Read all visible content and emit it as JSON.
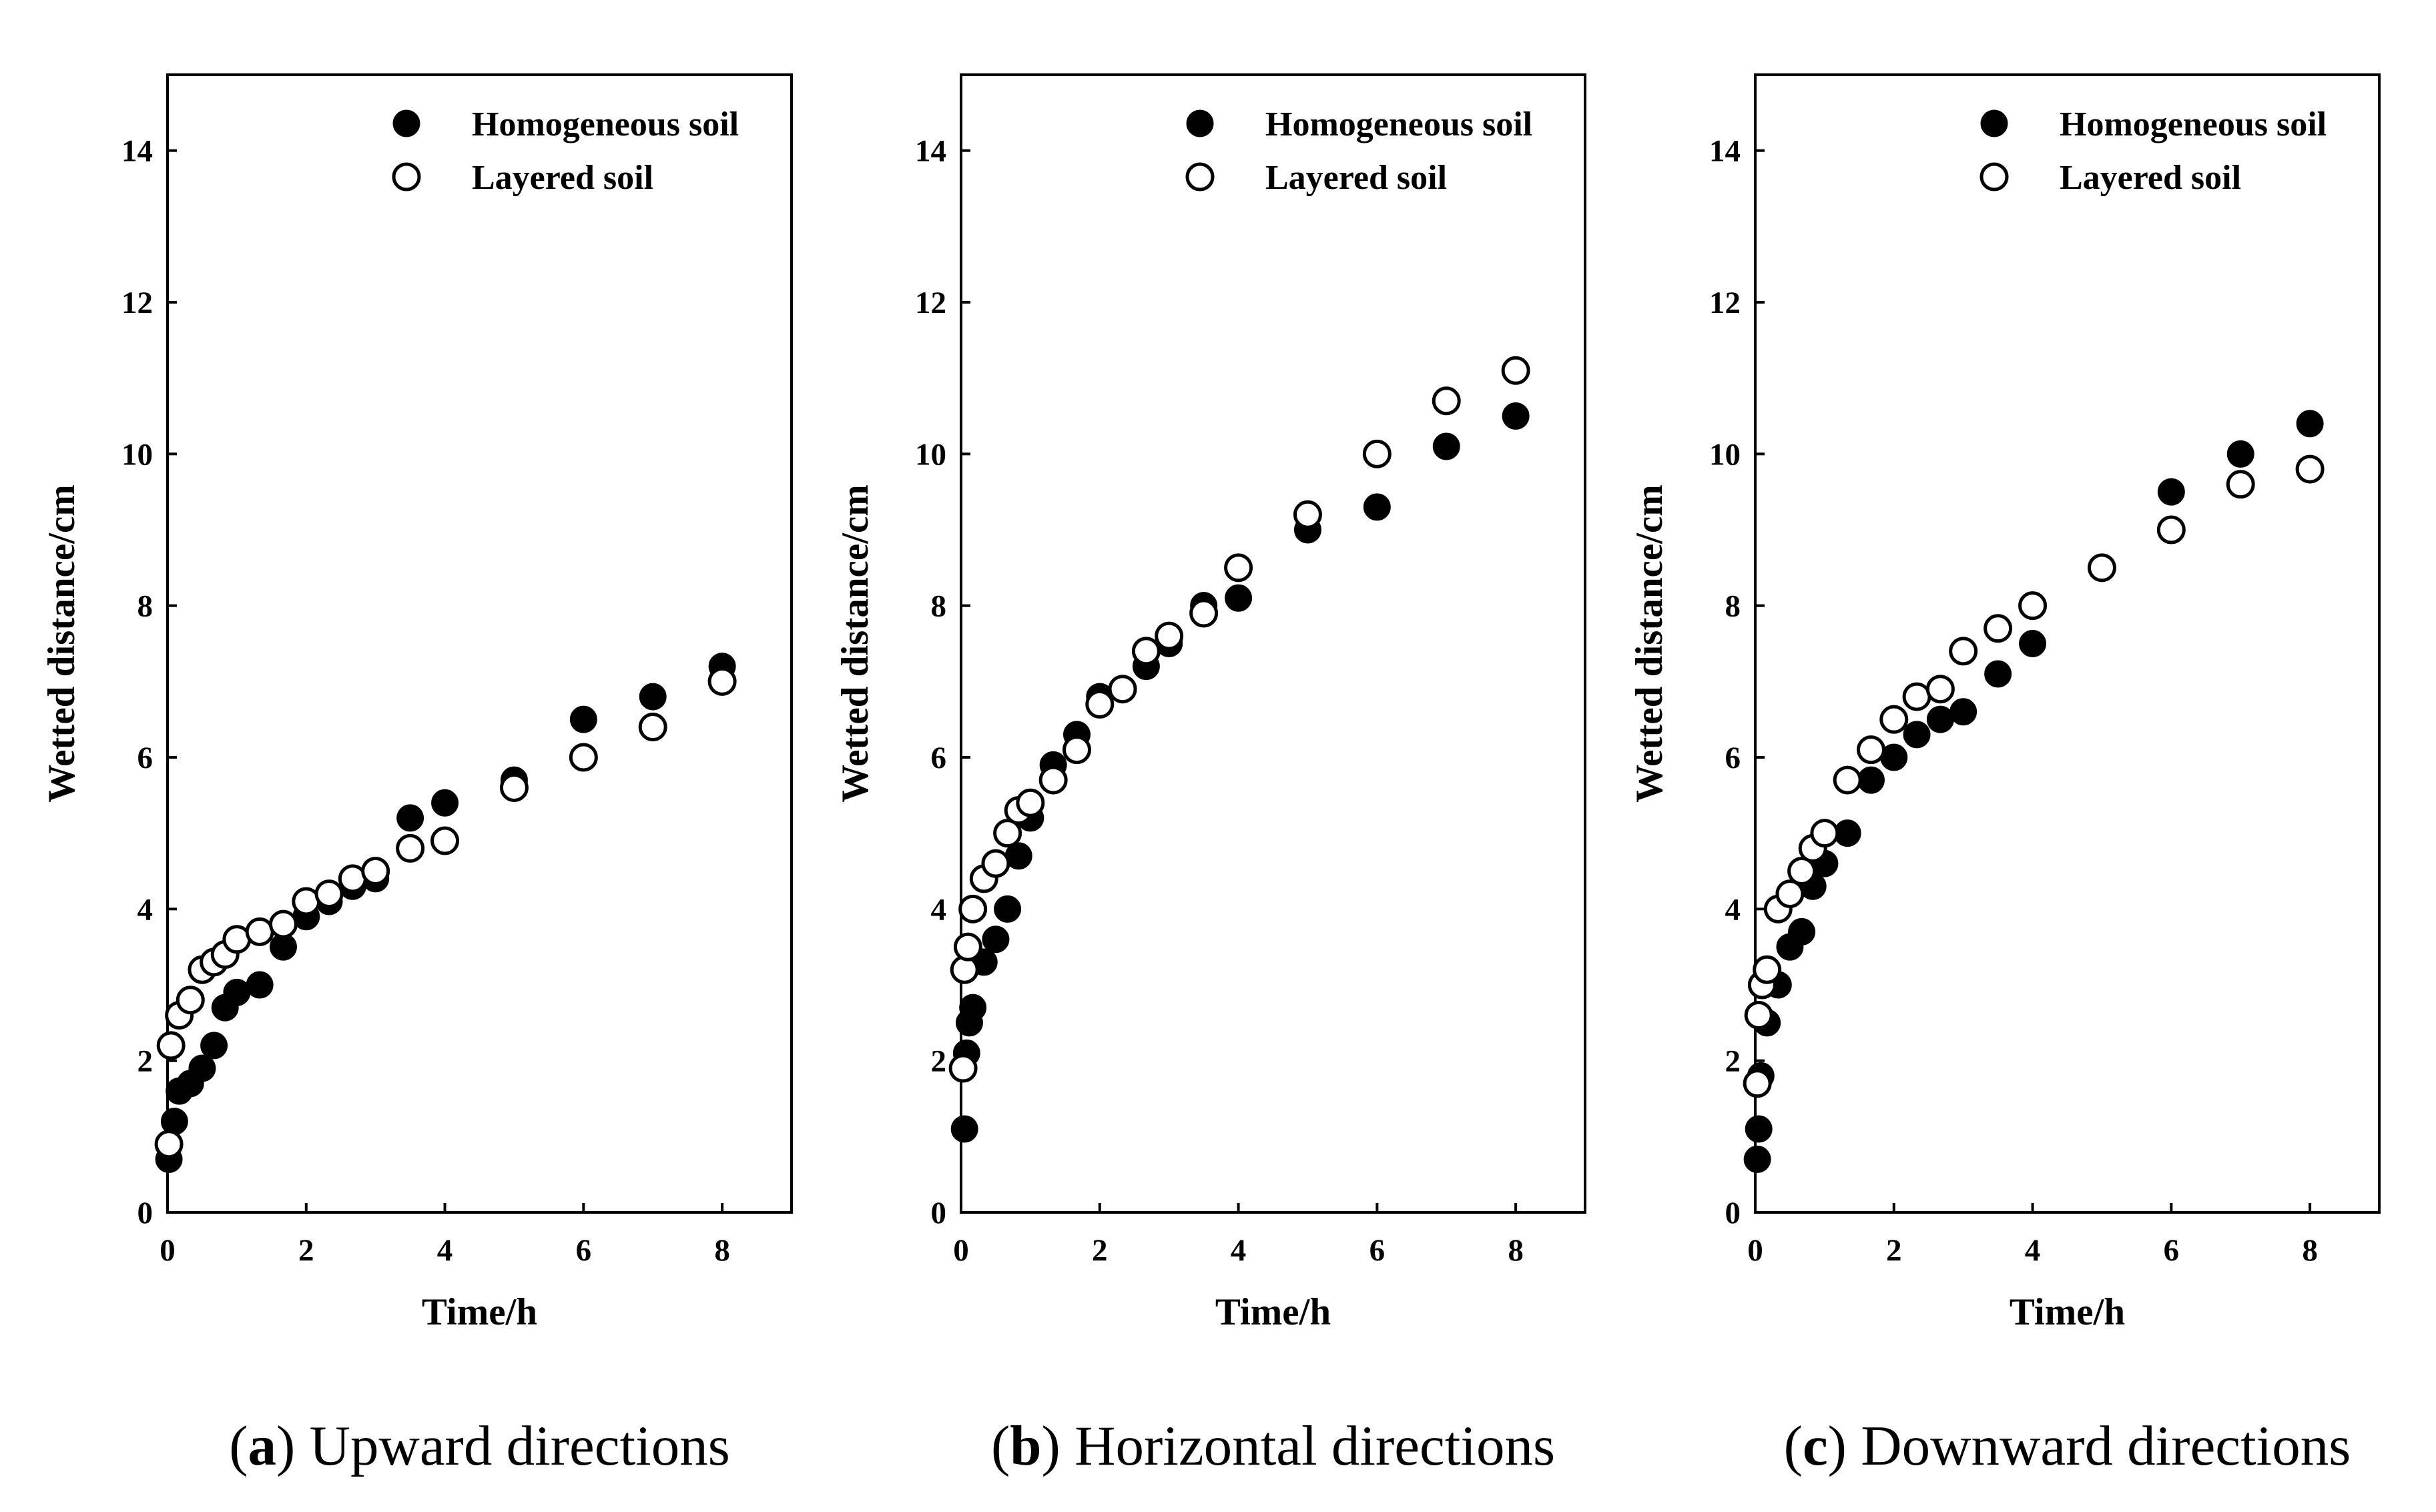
{
  "chart_data": [
    {
      "type": "scatter",
      "panel_letter": "a",
      "caption": "Upward directions",
      "xlabel": "Time/h",
      "ylabel": "Wetted distance/cm",
      "xlim": [
        0,
        9
      ],
      "ylim": [
        0,
        15
      ],
      "xticks": [
        "0",
        "2",
        "4",
        "6",
        "8"
      ],
      "yticks": [
        "0",
        "2",
        "4",
        "6",
        "8",
        "10",
        "12",
        "14"
      ],
      "legend_position": "top-right",
      "series": [
        {
          "name": "Homogeneous soil",
          "marker": "filled-circle",
          "x": [
            0.02,
            0.1,
            0.17,
            0.33,
            0.5,
            0.67,
            0.83,
            1.0,
            1.33,
            1.67,
            2.0,
            2.33,
            2.67,
            3.0,
            3.5,
            4.0,
            5.0,
            6.0,
            7.0,
            8.0
          ],
          "y": [
            0.7,
            1.2,
            1.6,
            1.7,
            1.9,
            2.2,
            2.7,
            2.9,
            3.0,
            3.5,
            3.9,
            4.1,
            4.3,
            4.4,
            5.2,
            5.4,
            5.7,
            6.5,
            6.8,
            7.2
          ]
        },
        {
          "name": "Layered soil",
          "marker": "open-circle",
          "x": [
            0.02,
            0.05,
            0.17,
            0.33,
            0.5,
            0.67,
            0.83,
            1.0,
            1.33,
            1.67,
            2.0,
            2.33,
            2.67,
            3.0,
            3.5,
            4.0,
            5.0,
            6.0,
            7.0,
            8.0
          ],
          "y": [
            0.9,
            2.2,
            2.6,
            2.8,
            3.2,
            3.3,
            3.4,
            3.6,
            3.7,
            3.8,
            4.1,
            4.2,
            4.4,
            4.5,
            4.8,
            4.9,
            5.6,
            6.0,
            6.4,
            7.0
          ]
        }
      ]
    },
    {
      "type": "scatter",
      "panel_letter": "b",
      "caption": "Horizontal directions",
      "xlabel": "Time/h",
      "ylabel": "Wetted distance/cm",
      "xlim": [
        0,
        9
      ],
      "ylim": [
        0,
        15
      ],
      "xticks": [
        "0",
        "2",
        "4",
        "6",
        "8"
      ],
      "yticks": [
        "0",
        "2",
        "4",
        "6",
        "8",
        "10",
        "12",
        "14"
      ],
      "legend_position": "top-right",
      "series": [
        {
          "name": "Homogeneous soil",
          "marker": "filled-circle",
          "x": [
            0.05,
            0.08,
            0.12,
            0.17,
            0.33,
            0.5,
            0.67,
            0.83,
            1.0,
            1.33,
            1.67,
            2.0,
            2.67,
            3.0,
            3.5,
            4.0,
            5.0,
            6.0,
            7.0,
            8.0
          ],
          "y": [
            1.1,
            2.1,
            2.5,
            2.7,
            3.3,
            3.6,
            4.0,
            4.7,
            5.2,
            5.9,
            6.3,
            6.8,
            7.2,
            7.5,
            8.0,
            8.1,
            9.0,
            9.3,
            10.1,
            10.5
          ]
        },
        {
          "name": "Layered soil",
          "marker": "open-circle",
          "x": [
            0.03,
            0.05,
            0.1,
            0.17,
            0.33,
            0.5,
            0.67,
            0.83,
            1.0,
            1.33,
            1.67,
            2.0,
            2.33,
            2.67,
            3.0,
            3.5,
            4.0,
            5.0,
            6.0,
            7.0,
            8.0
          ],
          "y": [
            1.9,
            3.2,
            3.5,
            4.0,
            4.4,
            4.6,
            5.0,
            5.3,
            5.4,
            5.7,
            6.1,
            6.7,
            6.9,
            7.4,
            7.6,
            7.9,
            8.5,
            9.2,
            10.0,
            10.7,
            11.1
          ]
        }
      ]
    },
    {
      "type": "scatter",
      "panel_letter": "c",
      "caption": "Downward directions",
      "xlabel": "Time/h",
      "ylabel": "Wetted distance/cm",
      "xlim": [
        0,
        9
      ],
      "ylim": [
        0,
        15
      ],
      "xticks": [
        "0",
        "2",
        "4",
        "6",
        "8"
      ],
      "yticks": [
        "0",
        "2",
        "4",
        "6",
        "8",
        "10",
        "12",
        "14"
      ],
      "legend_position": "top-right",
      "series": [
        {
          "name": "Homogeneous soil",
          "marker": "filled-circle",
          "x": [
            0.03,
            0.05,
            0.08,
            0.17,
            0.33,
            0.5,
            0.67,
            0.83,
            1.0,
            1.33,
            1.67,
            2.0,
            2.33,
            2.67,
            3.0,
            3.5,
            4.0,
            6.0,
            7.0,
            8.0
          ],
          "y": [
            0.7,
            1.1,
            1.8,
            2.5,
            3.0,
            3.5,
            3.7,
            4.3,
            4.6,
            5.0,
            5.7,
            6.0,
            6.3,
            6.5,
            6.6,
            7.1,
            7.5,
            9.5,
            10.0,
            10.4
          ]
        },
        {
          "name": "Layered soil",
          "marker": "open-circle",
          "x": [
            0.03,
            0.05,
            0.1,
            0.17,
            0.33,
            0.5,
            0.67,
            0.83,
            1.0,
            1.33,
            1.67,
            2.0,
            2.33,
            2.67,
            3.0,
            3.5,
            4.0,
            5.0,
            6.0,
            7.0,
            8.0
          ],
          "y": [
            1.7,
            2.6,
            3.0,
            3.2,
            4.0,
            4.2,
            4.5,
            4.8,
            5.0,
            5.7,
            6.1,
            6.5,
            6.8,
            6.9,
            7.4,
            7.7,
            8.0,
            8.5,
            9.0,
            9.6,
            9.8
          ]
        }
      ]
    }
  ]
}
